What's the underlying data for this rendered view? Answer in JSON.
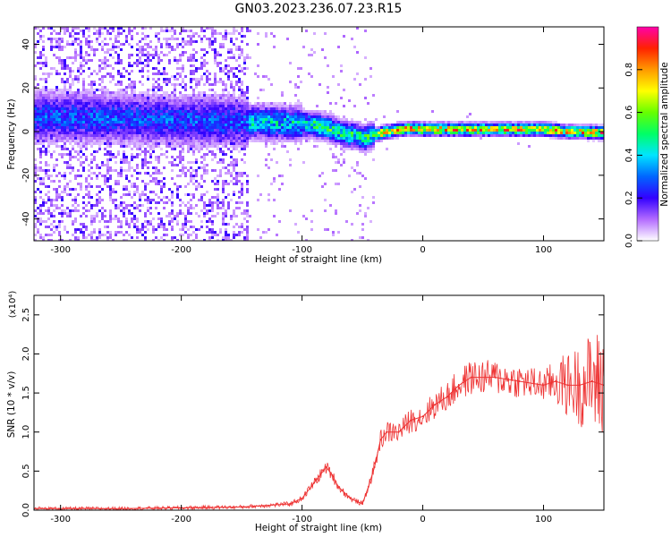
{
  "title": "GN03.2023.236.07.23.R15",
  "chart_data": [
    {
      "type": "heatmap",
      "xlabel": "Height of straight line (km)",
      "ylabel": "Frequency (Hz)",
      "xlim": [
        -322,
        150
      ],
      "ylim": [
        -50,
        48
      ],
      "xticks": [
        -300,
        -200,
        -100,
        0,
        100
      ],
      "yticks": [
        -40,
        -20,
        0,
        20,
        40
      ],
      "colorbar": {
        "label": "Normalized spectral amplitude",
        "range": [
          0,
          1
        ],
        "ticks": [
          "0.0",
          "0.2",
          "0.4",
          "0.6",
          "0.8"
        ]
      },
      "ridge_center_hz": {
        "x": [
          -322,
          -250,
          -200,
          -150,
          -120,
          -100,
          -80,
          -65,
          -55,
          -48,
          -30,
          -10,
          0,
          40,
          100,
          120,
          150
        ],
        "y": [
          7,
          6,
          5,
          4.5,
          4,
          3.5,
          2,
          -1,
          -2,
          -3,
          0,
          1.5,
          1,
          1,
          1,
          0,
          -0.5
        ]
      }
    },
    {
      "type": "line",
      "xlabel": "Height of straight line (km)",
      "ylabel": "SNR (10 * v/v)",
      "y_scale_note": "(x10⁴)",
      "xlim": [
        -322,
        150
      ],
      "ylim": [
        0,
        2.75
      ],
      "xticks": [
        -300,
        -200,
        -100,
        0,
        100
      ],
      "yticks": [
        "0.0",
        "0.5",
        "1.0",
        "1.5",
        "2.0",
        "2.5"
      ],
      "series": [
        {
          "color": "#ee3333",
          "x": [
            -322,
            -250,
            -200,
            -150,
            -110,
            -100,
            -90,
            -80,
            -75,
            -70,
            -60,
            -50,
            -45,
            -40,
            -35,
            -30,
            -20,
            -10,
            0,
            10,
            20,
            30,
            40,
            60,
            80,
            100,
            110,
            120,
            130,
            140,
            150
          ],
          "y": [
            0.02,
            0.02,
            0.03,
            0.04,
            0.08,
            0.15,
            0.35,
            0.55,
            0.45,
            0.3,
            0.15,
            0.08,
            0.3,
            0.55,
            0.9,
            1.0,
            1.0,
            1.15,
            1.2,
            1.35,
            1.45,
            1.6,
            1.7,
            1.7,
            1.65,
            1.6,
            1.65,
            1.6,
            1.6,
            1.65,
            1.6
          ]
        }
      ]
    }
  ]
}
